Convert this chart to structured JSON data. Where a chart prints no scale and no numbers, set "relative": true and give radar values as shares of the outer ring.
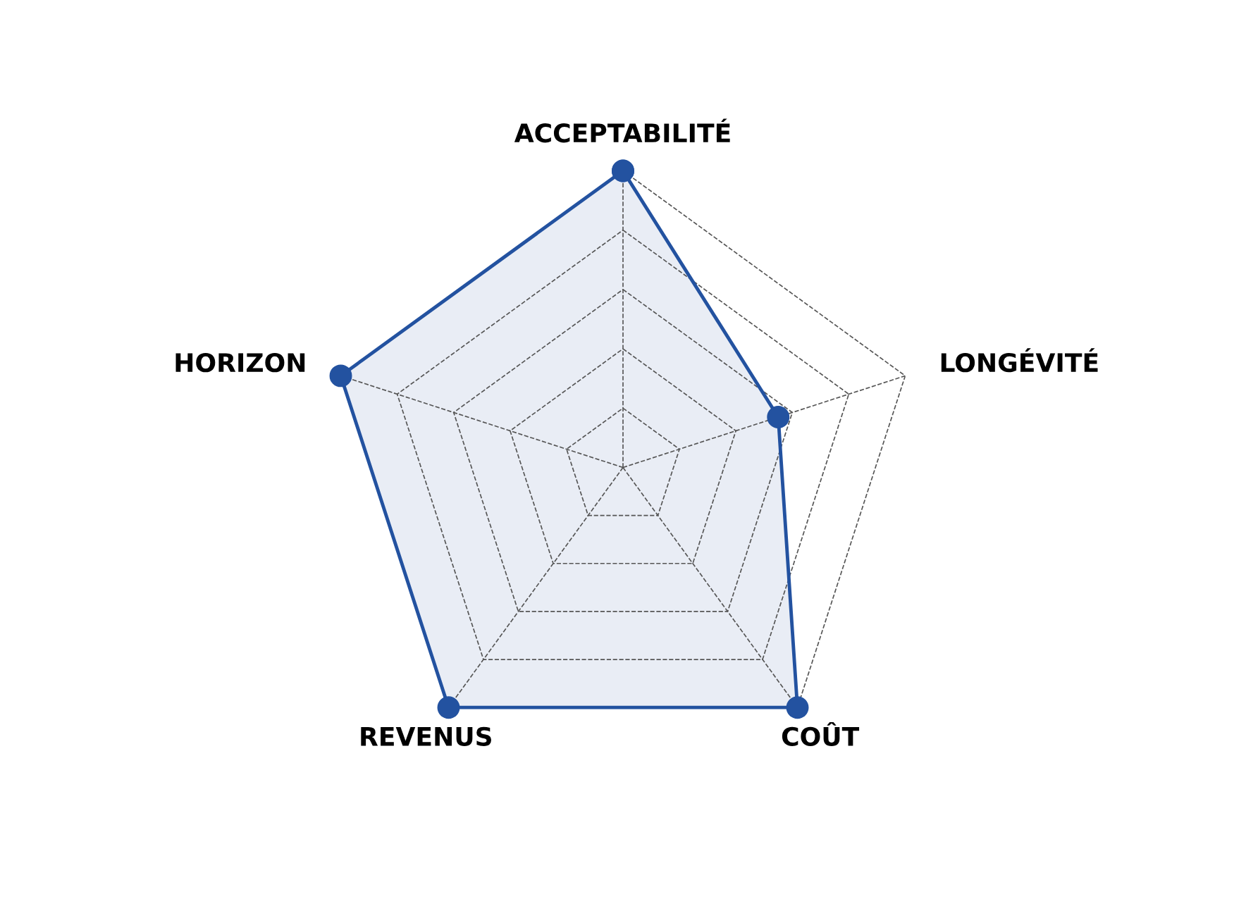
{
  "chart_data": {
    "type": "radar",
    "relative": true,
    "categories": [
      "ACCEPTABILITÉ",
      "LONGÉVITÉ",
      "COÛT",
      "REVENUS",
      "HORIZON"
    ],
    "series": [
      {
        "color": "#2352a0",
        "values": [
          1,
          0.55,
          1,
          1,
          1
        ]
      }
    ],
    "grid": true,
    "marker": "circle",
    "line_style": "solid"
  }
}
